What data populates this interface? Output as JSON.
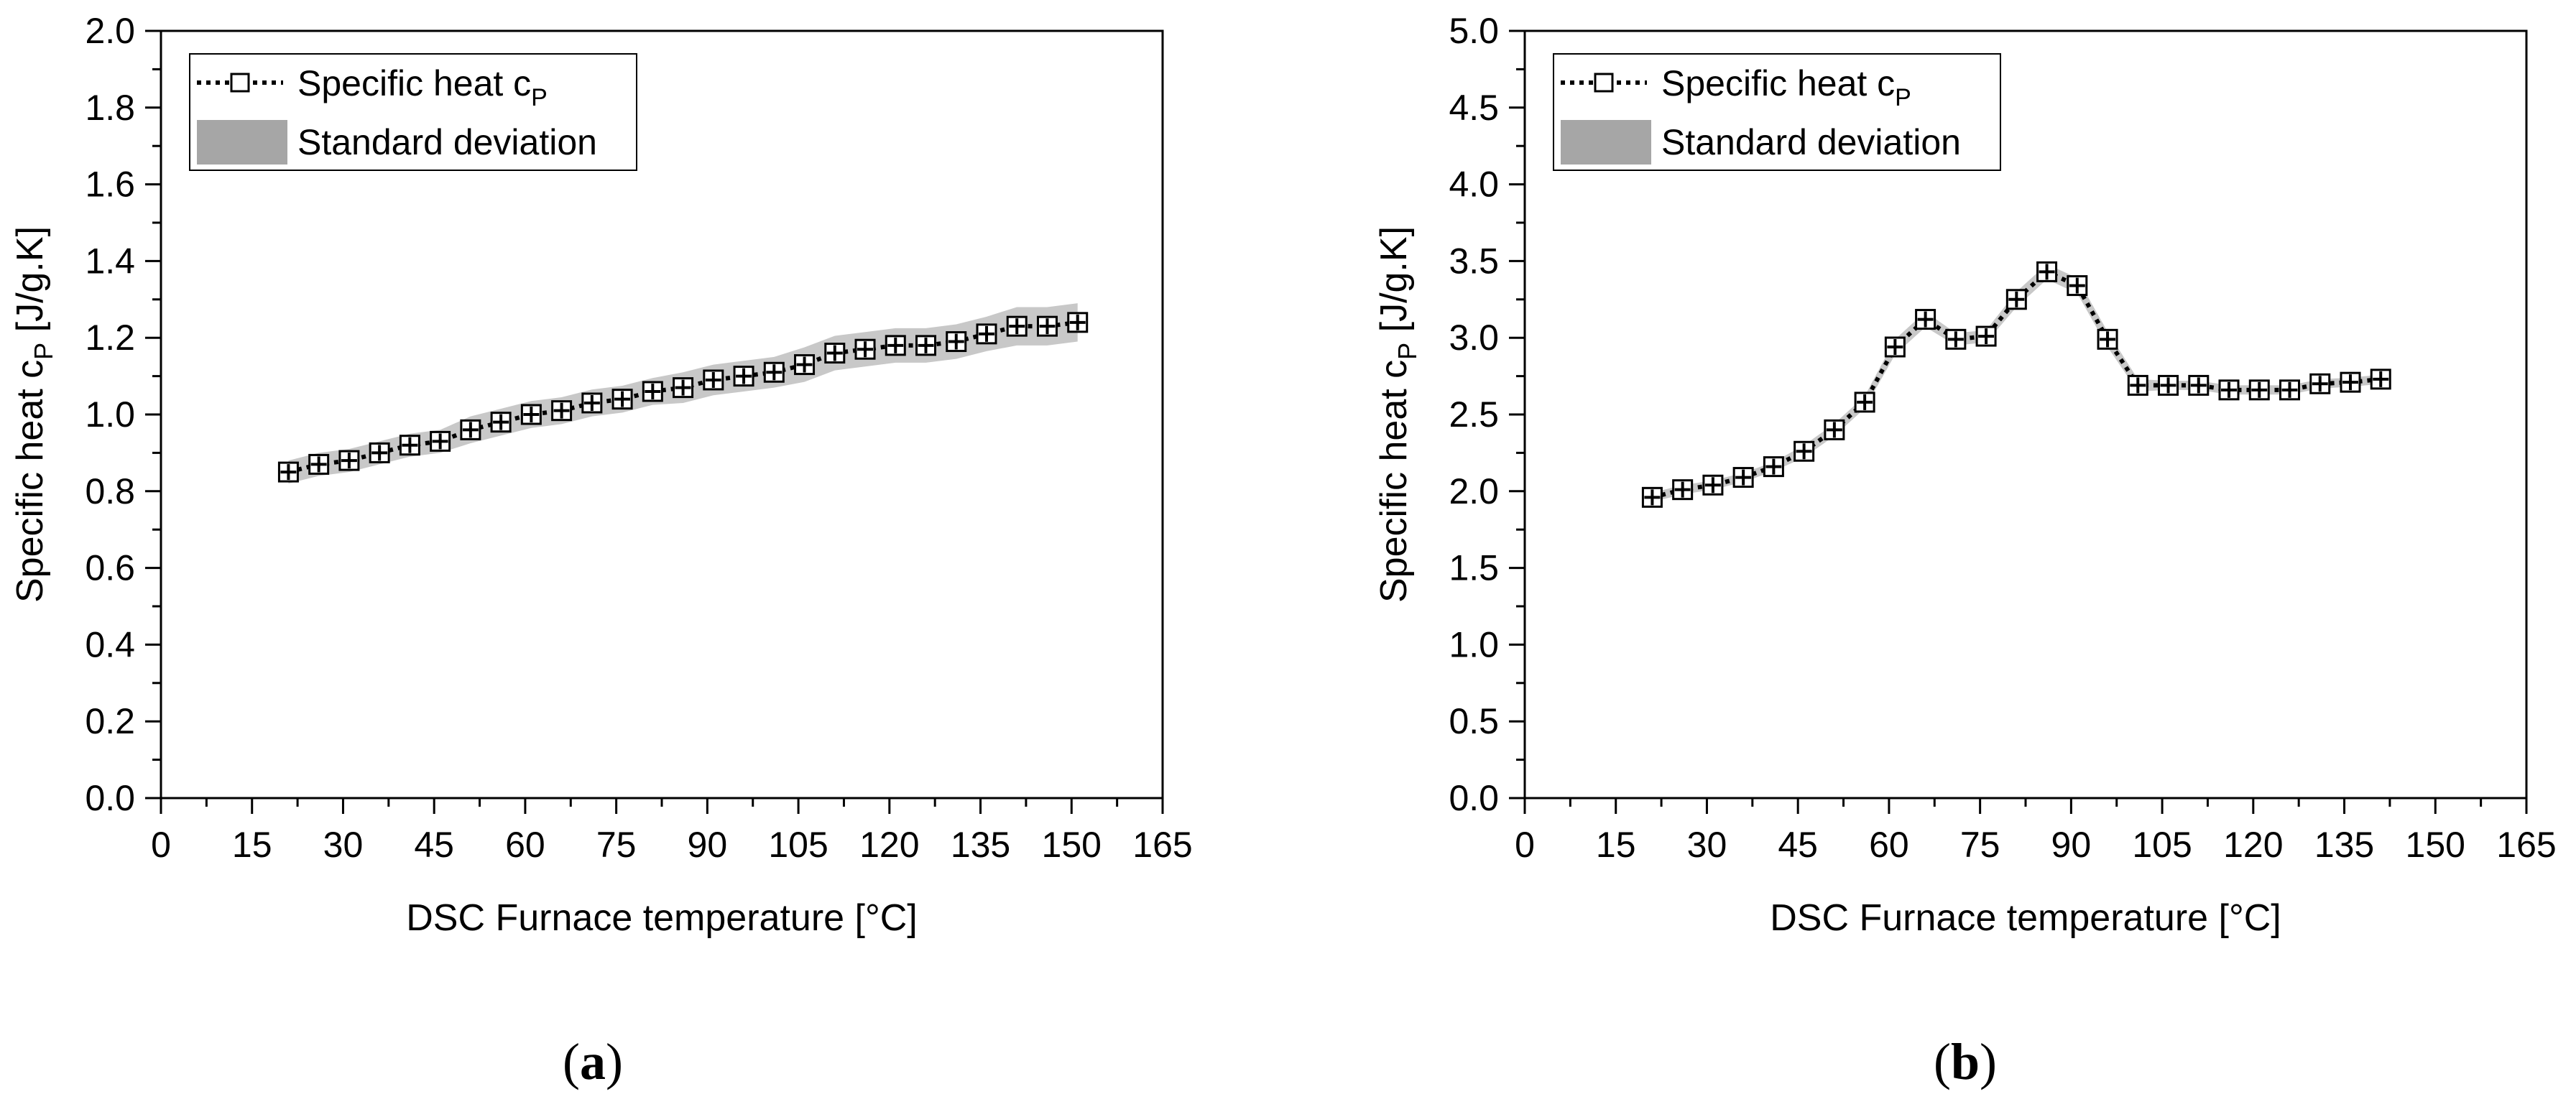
{
  "chart_data": [
    {
      "type": "line",
      "panel": "a",
      "caption_letter": "a",
      "xlabel": "DSC Furnace temperature [°C]",
      "ylabel_main": "Specific heat c",
      "ylabel_sub": "P",
      "ylabel_unit": " [J/g.K]",
      "xlim": [
        0,
        165
      ],
      "ylim": [
        0,
        2.0
      ],
      "xticks": [
        "0",
        "15",
        "30",
        "45",
        "60",
        "75",
        "90",
        "105",
        "120",
        "135",
        "150",
        "165"
      ],
      "yticks": [
        "0.0",
        "0.2",
        "0.4",
        "0.6",
        "0.8",
        "1.0",
        "1.2",
        "1.4",
        "1.6",
        "1.8",
        "2.0"
      ],
      "legend_position": "top-left",
      "legend": [
        {
          "label_main": "Specific heat c",
          "label_sub": "P"
        },
        {
          "label_main": "Standard deviation"
        }
      ],
      "series": [
        {
          "name": "Specific heat cP",
          "x": [
            21,
            26,
            31,
            36,
            41,
            46,
            51,
            56,
            61,
            66,
            71,
            76,
            81,
            86,
            91,
            96,
            101,
            106,
            111,
            116,
            121,
            126,
            131,
            136,
            141,
            146,
            151
          ],
          "values": [
            0.85,
            0.87,
            0.88,
            0.9,
            0.92,
            0.93,
            0.96,
            0.98,
            1.0,
            1.01,
            1.03,
            1.04,
            1.06,
            1.07,
            1.09,
            1.1,
            1.11,
            1.13,
            1.16,
            1.17,
            1.18,
            1.18,
            1.19,
            1.21,
            1.23,
            1.23,
            1.24
          ],
          "std": [
            0.03,
            0.03,
            0.03,
            0.03,
            0.03,
            0.03,
            0.035,
            0.035,
            0.035,
            0.035,
            0.035,
            0.035,
            0.035,
            0.04,
            0.04,
            0.04,
            0.04,
            0.045,
            0.045,
            0.045,
            0.045,
            0.045,
            0.045,
            0.045,
            0.05,
            0.05,
            0.05
          ]
        }
      ]
    },
    {
      "type": "line",
      "panel": "b",
      "caption_letter": "b",
      "xlabel": "DSC Furnace temperature [°C]",
      "ylabel_main": "Specific heat c",
      "ylabel_sub": "P",
      "ylabel_unit": " [J/g.K]",
      "xlim": [
        0,
        165
      ],
      "ylim": [
        0,
        5.0
      ],
      "xticks": [
        "0",
        "15",
        "30",
        "45",
        "60",
        "75",
        "90",
        "105",
        "120",
        "135",
        "150",
        "165"
      ],
      "yticks": [
        "0.0",
        "0.5",
        "1.0",
        "1.5",
        "2.0",
        "2.5",
        "3.0",
        "3.5",
        "4.0",
        "4.5",
        "5.0"
      ],
      "legend_position": "top-left",
      "legend": [
        {
          "label_main": "Specific heat c",
          "label_sub": "P"
        },
        {
          "label_main": "Standard deviation"
        }
      ],
      "series": [
        {
          "name": "Specific heat cP",
          "x": [
            21,
            26,
            31,
            36,
            41,
            46,
            51,
            56,
            61,
            66,
            71,
            76,
            81,
            86,
            91,
            96,
            101,
            106,
            111,
            116,
            121,
            126,
            131,
            136,
            141
          ],
          "values": [
            1.96,
            2.01,
            2.04,
            2.09,
            2.16,
            2.26,
            2.4,
            2.58,
            2.94,
            3.12,
            2.99,
            3.01,
            3.25,
            3.43,
            3.34,
            2.99,
            2.69,
            2.69,
            2.69,
            2.66,
            2.66,
            2.66,
            2.7,
            2.71,
            2.73
          ],
          "std": [
            0.03,
            0.03,
            0.03,
            0.03,
            0.03,
            0.04,
            0.04,
            0.04,
            0.05,
            0.05,
            0.04,
            0.04,
            0.05,
            0.05,
            0.05,
            0.05,
            0.04,
            0.03,
            0.03,
            0.03,
            0.03,
            0.03,
            0.03,
            0.03,
            0.03
          ]
        }
      ]
    }
  ]
}
